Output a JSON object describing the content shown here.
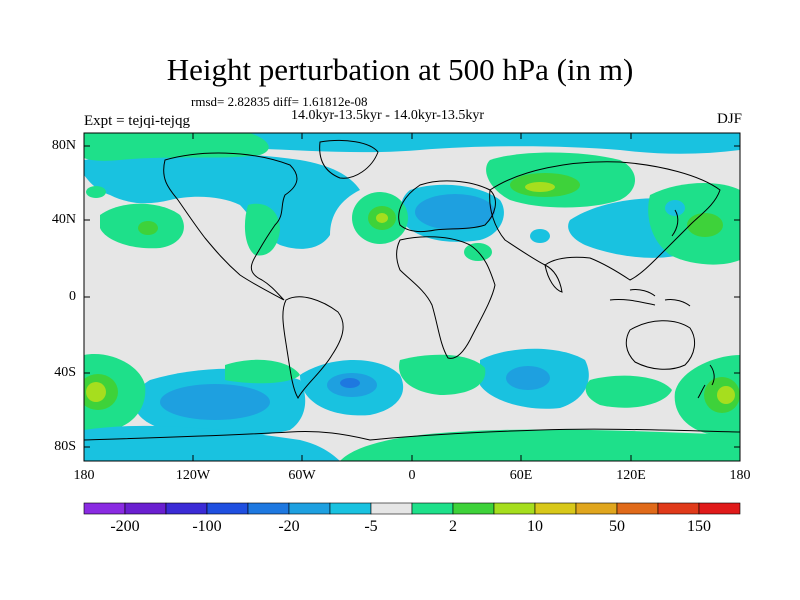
{
  "map": {
    "title": "Height perturbation at 500 hPa (in m)",
    "stats": "rmsd= 2.82835 diff= 1.61812e-08",
    "period": "14.0kyr-13.5kyr - 14.0kyr-13.5kyr",
    "experiment": "Expt = tejqi-tejqg",
    "season": "DJF",
    "lat_labels": [
      "80N",
      "40N",
      "0",
      "40S",
      "80S"
    ],
    "lon_labels": [
      "180",
      "120W",
      "60W",
      "0",
      "60E",
      "120E",
      "180"
    ]
  },
  "colorbar": {
    "tick_labels": [
      "-200",
      "-100",
      "-20",
      "-5",
      "2",
      "10",
      "50",
      "150"
    ],
    "colors": [
      "#8a2be2",
      "#6a1fd0",
      "#3b2bd6",
      "#1f4fe0",
      "#1e78e0",
      "#1ea0e0",
      "#19c2e0",
      "#e6e6e6",
      "#1ee08a",
      "#3ed23a",
      "#a6de1e",
      "#d8c81a",
      "#e0a61e",
      "#e06a1a",
      "#e03a1a",
      "#e01a1a"
    ]
  }
}
